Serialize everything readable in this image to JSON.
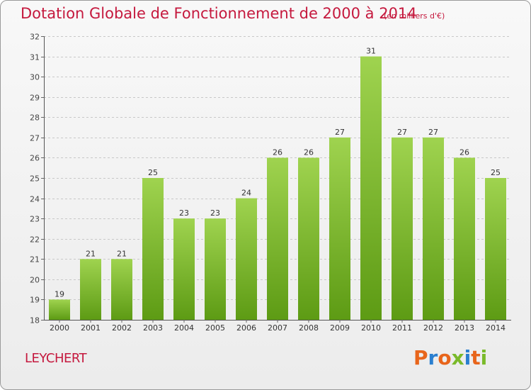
{
  "title": "Dotation Globale de Fonctionnement de 2000 à 2014",
  "subtitle": "(en milliers d'€)",
  "commune": "LEYCHERT",
  "logo": {
    "text": "Proxiti",
    "letters": [
      "P",
      "r",
      "o",
      "x",
      "i",
      "t",
      "i"
    ],
    "colors": [
      "#e8651b",
      "#2a7fd0",
      "#e8651b",
      "#7aba2a",
      "#2a7fd0",
      "#e8651b",
      "#7aba2a"
    ]
  },
  "colors": {
    "title": "#c5193e",
    "bar_top": "#9fd34f",
    "bar_bottom": "#5d9b14"
  },
  "chart_data": {
    "type": "bar",
    "title": "Dotation Globale de Fonctionnement de 2000 à 2014",
    "subtitle": "(en milliers d'€)",
    "categories": [
      "2000",
      "2001",
      "2002",
      "2003",
      "2004",
      "2005",
      "2006",
      "2007",
      "2008",
      "2009",
      "2010",
      "2011",
      "2012",
      "2013",
      "2014"
    ],
    "values": [
      19,
      21,
      21,
      25,
      23,
      23,
      24,
      26,
      26,
      27,
      31,
      27,
      27,
      26,
      25
    ],
    "ylim": [
      18,
      32
    ],
    "yticks": [
      18,
      19,
      20,
      21,
      22,
      23,
      24,
      25,
      26,
      27,
      28,
      29,
      30,
      31,
      32
    ],
    "grid": true,
    "data_labels": true
  }
}
